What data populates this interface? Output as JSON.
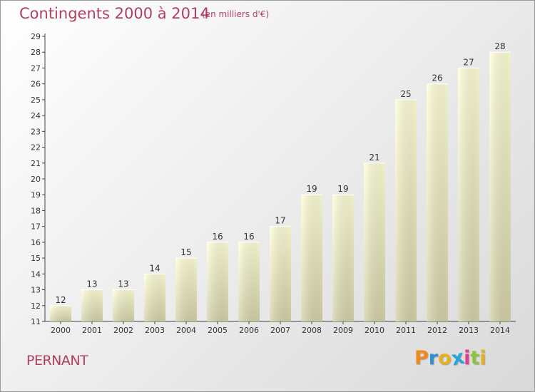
{
  "header": {
    "title": "Contingents 2000 à 2014",
    "subtitle": "(en milliers d'€)"
  },
  "footer": {
    "place": "PERNANT",
    "logo": "Proxiti",
    "logo_colors": [
      "#f08a1c",
      "#2e8fd6",
      "#e8b020",
      "#2aa5d9",
      "#e23b8c",
      "#8bc53f",
      "#e8b020"
    ]
  },
  "colors": {
    "title": "#b0405e",
    "bar_top": "#ffffd8",
    "bar_bottom": "#d4d2a8",
    "axis": "#444444"
  },
  "chart_data": {
    "type": "bar",
    "title": "Contingents 2000 à 2014",
    "subtitle": "(en milliers d'€)",
    "categories": [
      "2000",
      "2001",
      "2002",
      "2003",
      "2004",
      "2005",
      "2006",
      "2007",
      "2008",
      "2009",
      "2010",
      "2011",
      "2012",
      "2013",
      "2014"
    ],
    "values": [
      12,
      13,
      13,
      14,
      15,
      16,
      16,
      17,
      19,
      19,
      21,
      25,
      26,
      27,
      28
    ],
    "ylim": [
      11,
      29
    ],
    "yticks": [
      11,
      12,
      13,
      14,
      15,
      16,
      17,
      18,
      19,
      20,
      21,
      22,
      23,
      24,
      25,
      26,
      27,
      28,
      29
    ],
    "grid": false,
    "legend": "none"
  }
}
